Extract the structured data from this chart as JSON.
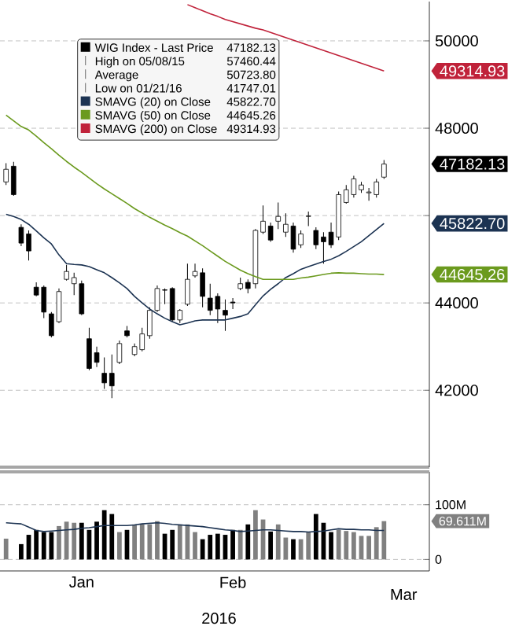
{
  "chart_data": [
    {
      "type": "candlestick",
      "categories": [
        null,
        null,
        null,
        null,
        null,
        null,
        null,
        null,
        null,
        null,
        null,
        null,
        null,
        null,
        null,
        null,
        null,
        null,
        null,
        null,
        null,
        null,
        null,
        null,
        null,
        null,
        null,
        null,
        null,
        null,
        null,
        null,
        null,
        null,
        null,
        null,
        null,
        null,
        null,
        null,
        null,
        null,
        null,
        null,
        null,
        null,
        null,
        null,
        null,
        null,
        null
      ],
      "series": [
        {
          "name": "WIG Index - Last Price",
          "color": "#000000",
          "ohlc": [
            [
              46770,
              47200,
              46700,
              47060
            ],
            [
              47130,
              47230,
              46450,
              46480
            ],
            [
              45730,
              45800,
              45300,
              45370
            ],
            [
              45580,
              45660,
              44970,
              45190
            ],
            [
              44360,
              44470,
              44150,
              44180
            ],
            [
              44360,
              44400,
              43650,
              43790
            ],
            [
              43750,
              43790,
              43210,
              43250
            ],
            [
              43570,
              44330,
              43540,
              44260
            ],
            [
              44540,
              44870,
              44510,
              44720
            ],
            [
              44440,
              44690,
              44180,
              44580
            ],
            [
              44440,
              44510,
              43720,
              43750
            ],
            [
              43180,
              43430,
              42460,
              42500
            ],
            [
              42860,
              43000,
              42530,
              42640
            ],
            [
              42390,
              42750,
              42030,
              42170
            ],
            [
              42390,
              42820,
              41820,
              42100
            ],
            [
              42640,
              43140,
              42600,
              43070
            ],
            [
              43360,
              43470,
              43210,
              43250
            ],
            [
              42820,
              43070,
              42780,
              43000
            ],
            [
              42930,
              43430,
              42890,
              43290
            ],
            [
              43250,
              43900,
              43180,
              43830
            ],
            [
              43830,
              44400,
              43790,
              44330
            ],
            [
              44300,
              44330,
              43970,
              44290
            ],
            [
              44330,
              44360,
              43570,
              43610
            ],
            [
              43610,
              43860,
              43540,
              43830
            ],
            [
              43970,
              44900,
              43930,
              44540
            ],
            [
              44620,
              44900,
              44580,
              44720
            ],
            [
              44690,
              44790,
              43900,
              44150
            ],
            [
              44110,
              44440,
              43720,
              43830
            ],
            [
              44150,
              44220,
              43540,
              43860
            ],
            [
              43830,
              44080,
              43360,
              43720
            ],
            [
              44020,
              44110,
              43860,
              44000
            ],
            [
              44330,
              44580,
              44290,
              44440
            ],
            [
              44470,
              44540,
              44220,
              44330
            ],
            [
              44440,
              45690,
              44330,
              45660
            ],
            [
              45620,
              46230,
              45580,
              45870
            ],
            [
              45760,
              45840,
              45400,
              45440
            ],
            [
              45870,
              46300,
              45690,
              45980
            ],
            [
              45620,
              46050,
              45510,
              45800
            ],
            [
              45760,
              45840,
              45150,
              45230
            ],
            [
              45330,
              45660,
              45260,
              45580
            ],
            [
              45980,
              46090,
              45760,
              45990
            ],
            [
              45660,
              45730,
              45230,
              45330
            ],
            [
              45510,
              45620,
              44900,
              45400
            ],
            [
              45620,
              45840,
              45260,
              45330
            ],
            [
              45510,
              46550,
              45440,
              46480
            ],
            [
              46300,
              46700,
              46270,
              46590
            ],
            [
              46480,
              46910,
              46410,
              46840
            ],
            [
              46590,
              46770,
              46520,
              46700
            ],
            [
              46520,
              46630,
              46340,
              46540
            ],
            [
              46480,
              46840,
              46410,
              46770
            ],
            [
              46880,
              47270,
              46840,
              47180
            ]
          ]
        },
        {
          "name": "SMAVG (20) on Close",
          "type": "line",
          "color": "#1c3352",
          "values": [
            46030,
            45980,
            45910,
            45800,
            45650,
            45490,
            45350,
            45100,
            44900,
            44880,
            44870,
            44830,
            44760,
            44690,
            44580,
            44460,
            44330,
            44150,
            44000,
            43860,
            43750,
            43650,
            43570,
            43500,
            43540,
            43590,
            43610,
            43610,
            43610,
            43610,
            43650,
            43690,
            43750,
            43960,
            44160,
            44310,
            44440,
            44580,
            44670,
            44770,
            44830,
            44890,
            44950,
            45000,
            45080,
            45180,
            45290,
            45400,
            45540,
            45680,
            45820
          ]
        },
        {
          "name": "SMAVG (50) on Close",
          "type": "line",
          "color": "#6b9a1e",
          "values": [
            48300,
            48170,
            48040,
            47960,
            47820,
            47670,
            47530,
            47380,
            47240,
            47110,
            46990,
            46860,
            46730,
            46610,
            46500,
            46390,
            46280,
            46160,
            46060,
            45960,
            45870,
            45780,
            45700,
            45610,
            45530,
            45420,
            45310,
            45190,
            45070,
            44950,
            44850,
            44750,
            44670,
            44600,
            44540,
            44540,
            44540,
            44540,
            44540,
            44570,
            44590,
            44620,
            44650,
            44680,
            44690,
            44680,
            44680,
            44670,
            44660,
            44660,
            44650
          ]
        },
        {
          "name": "SMAVG (200) on Close",
          "type": "line",
          "color": "#c0223a",
          "values": [
            null,
            null,
            null,
            null,
            null,
            null,
            null,
            null,
            null,
            null,
            null,
            null,
            null,
            null,
            null,
            null,
            null,
            null,
            null,
            null,
            null,
            null,
            null,
            null,
            50830,
            50760,
            50690,
            50620,
            50560,
            50490,
            50440,
            50390,
            50340,
            50290,
            50250,
            null,
            null,
            null,
            null,
            null,
            null,
            null,
            null,
            null,
            null,
            null,
            null,
            null,
            null,
            null,
            49310
          ]
        }
      ],
      "ylim": [
        40240,
        50900
      ],
      "yticks": [
        42000,
        44000,
        {
          "value": 46000,
          "label": null
        },
        48000,
        50000
      ],
      "tick_labels": "y",
      "grid": "y",
      "legend": "top left",
      "annotations": [
        "High on 05/08/15",
        "57460.44",
        "Average",
        "50723.80",
        "Low on 01/21/16",
        "41747.01",
        "47182.13",
        "45822.70",
        "44645.26",
        "49314.93",
        "47182.13",
        "45822.70",
        "44645.26",
        "49314.93"
      ]
    },
    {
      "type": "bar",
      "categories": [
        null,
        null,
        null,
        null,
        null,
        null,
        null,
        null,
        null,
        null,
        "Jan",
        null,
        null,
        null,
        null,
        null,
        null,
        null,
        null,
        null,
        null,
        null,
        null,
        null,
        null,
        null,
        null,
        null,
        null,
        null,
        "Feb",
        null,
        null,
        null,
        null,
        null,
        null,
        null,
        null,
        null,
        null,
        null,
        null,
        null,
        null,
        null,
        null,
        null,
        null,
        null,
        null
      ],
      "series": [
        {
          "values": [
            38,
            null,
            28,
            45,
            54,
            50,
            50,
            61,
            69,
            67,
            67,
            54,
            69,
            90,
            83,
            50,
            54,
            64,
            64,
            64,
            70,
            47,
            54,
            64,
            64,
            50,
            37,
            45,
            47,
            45,
            54,
            54,
            64,
            90,
            73,
            51,
            64,
            40,
            37,
            37,
            50,
            83,
            67,
            50,
            54,
            52,
            50,
            43,
            43,
            59,
            70
          ],
          "colors": [
            "#808080",
            "#000000",
            "#000000",
            "#000000",
            "#000000",
            "#000000",
            "#000000",
            "#808080",
            "#808080",
            "#808080",
            "#000000",
            "#000000",
            "#000000",
            "#000000",
            "#000000",
            "#808080",
            "#000000",
            "#808080",
            "#808080",
            "#808080",
            "#808080",
            "#000000",
            "#000000",
            "#808080",
            "#808080",
            "#808080",
            "#000000",
            "#000000",
            "#000000",
            "#000000",
            "#000000",
            "#808080",
            "#000000",
            "#808080",
            "#808080",
            "#000000",
            "#808080",
            "#808080",
            "#000000",
            "#808080",
            "#808080",
            "#000000",
            "#000000",
            "#000000",
            "#808080",
            "#808080",
            "#808080",
            "#808080",
            "#808080",
            "#808080",
            "#808080"
          ]
        },
        {
          "type": "line",
          "color": "#1c3352",
          "values": [
            67,
            66,
            65,
            59,
            53,
            51,
            52,
            53,
            54,
            55,
            57,
            58,
            60,
            62,
            62,
            62,
            62,
            63,
            65,
            66,
            67,
            66,
            64,
            63,
            62,
            61,
            60,
            58,
            56,
            54,
            53,
            51,
            52,
            53,
            54,
            54,
            53,
            52,
            51,
            51,
            50,
            51,
            52,
            54,
            56,
            55,
            55,
            54,
            54,
            53,
            53
          ]
        }
      ],
      "ylim": [
        -21,
        160
      ],
      "yticks": [
        0,
        {
          "value": 100,
          "label": "100M"
        }
      ],
      "grid": "y",
      "annotations": [
        "69.611M",
        "Mar",
        "2016"
      ]
    }
  ]
}
